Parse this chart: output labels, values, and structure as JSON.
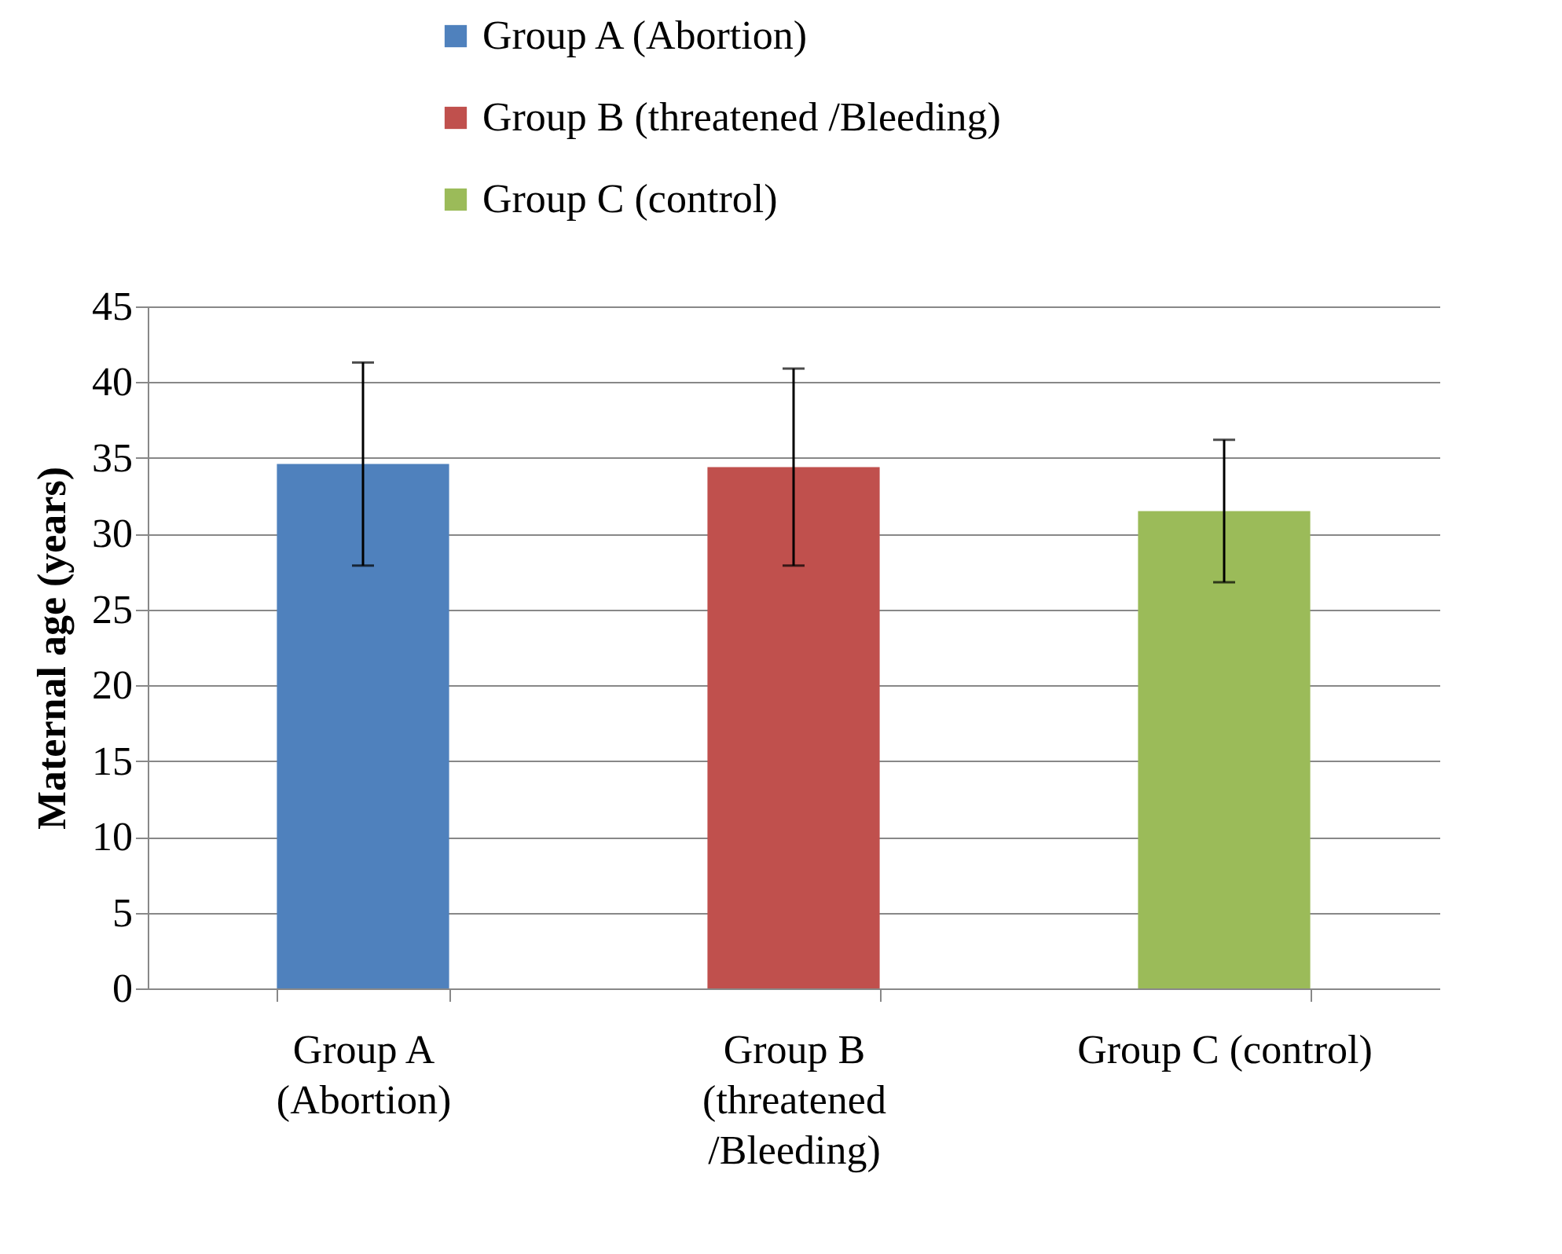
{
  "chart_data": {
    "type": "bar",
    "ylabel": "Maternal age (years)",
    "categories": [
      "Group A (Abortion)",
      "Group B (threatened /Bleeding)",
      "Group C (control)"
    ],
    "series": [
      {
        "name": "Group A (Abortion)",
        "color": "#4f81bd",
        "values": [
          34.6,
          null,
          null
        ],
        "errors": [
          6.7,
          null,
          null
        ]
      },
      {
        "name": "Group B (threatened /Bleeding)",
        "color": "#c0504d",
        "values": [
          null,
          34.4,
          null
        ],
        "errors": [
          null,
          6.5,
          null
        ]
      },
      {
        "name": "Group C (control)",
        "color": "#9bbb59",
        "values": [
          null,
          null,
          31.5
        ],
        "errors": [
          null,
          null,
          4.7
        ]
      }
    ],
    "ylim": [
      0,
      45
    ],
    "yticks": [
      0,
      5,
      10,
      15,
      20,
      25,
      30,
      35,
      40,
      45
    ],
    "grid": "y",
    "legend": "top"
  }
}
